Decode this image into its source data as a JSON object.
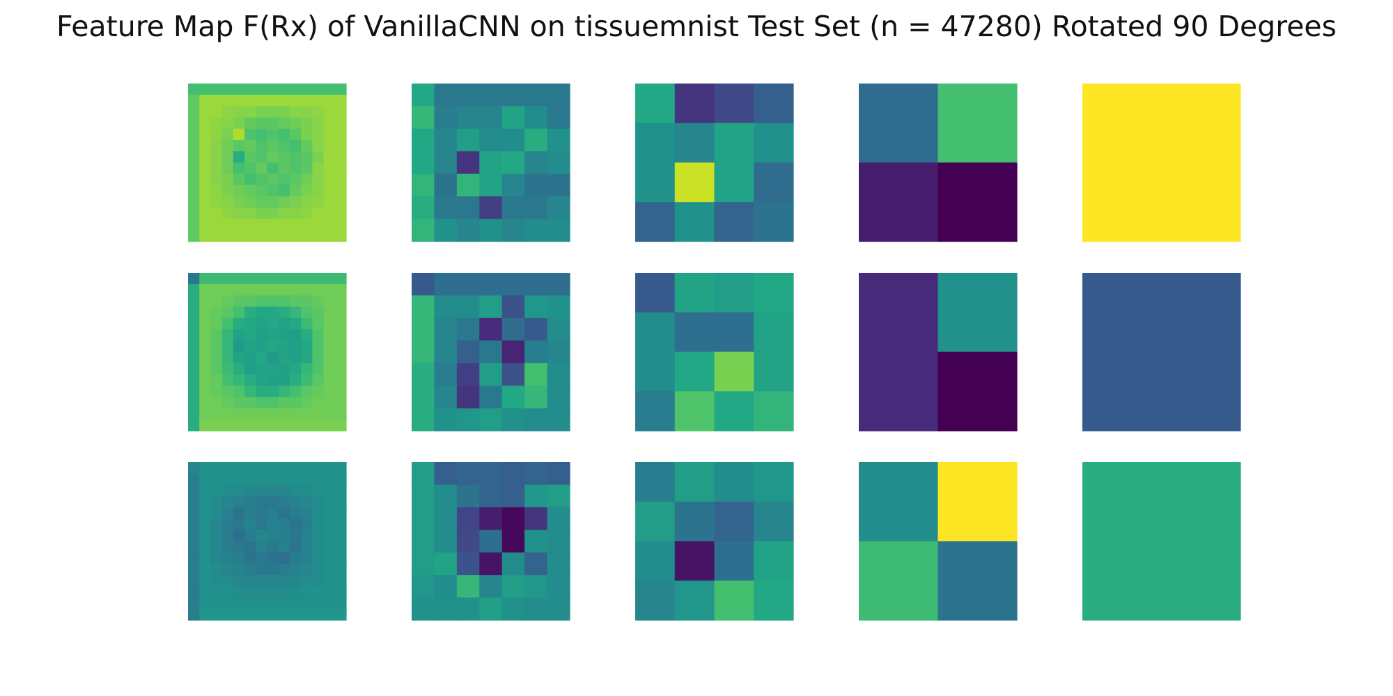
{
  "title": "Feature Map F(Rx) of VanillaCNN on tissuemnist Test Set (n = 47280) Rotated 90 Degrees",
  "chart_data": {
    "type": "heatmap",
    "title": "Feature Map F(Rx) of VanillaCNN on tissuemnist Test Set (n = 47280) Rotated 90 Degrees",
    "colormap": "viridis",
    "axes": "off",
    "value_range": [
      0,
      1
    ],
    "layout": {
      "rows": 3,
      "columns": 5
    },
    "panels": [
      {
        "row": 0,
        "col": 0,
        "size": 14,
        "values": [
          [
            0.7,
            0.7,
            0.7,
            0.7,
            0.7,
            0.7,
            0.7,
            0.7,
            0.7,
            0.7,
            0.7,
            0.7,
            0.7,
            0.7
          ],
          [
            0.75,
            0.85,
            0.85,
            0.85,
            0.85,
            0.85,
            0.85,
            0.85,
            0.85,
            0.85,
            0.85,
            0.85,
            0.85,
            0.85
          ],
          [
            0.75,
            0.85,
            0.85,
            0.83,
            0.82,
            0.82,
            0.8,
            0.8,
            0.8,
            0.82,
            0.82,
            0.83,
            0.85,
            0.85
          ],
          [
            0.75,
            0.85,
            0.83,
            0.82,
            0.8,
            0.76,
            0.74,
            0.74,
            0.76,
            0.78,
            0.8,
            0.82,
            0.85,
            0.85
          ],
          [
            0.75,
            0.85,
            0.83,
            0.8,
            0.88,
            0.72,
            0.7,
            0.72,
            0.7,
            0.74,
            0.8,
            0.82,
            0.85,
            0.85
          ],
          [
            0.75,
            0.85,
            0.82,
            0.78,
            0.74,
            0.76,
            0.72,
            0.74,
            0.72,
            0.7,
            0.76,
            0.82,
            0.85,
            0.85
          ],
          [
            0.75,
            0.85,
            0.82,
            0.78,
            0.62,
            0.74,
            0.72,
            0.76,
            0.74,
            0.72,
            0.74,
            0.8,
            0.85,
            0.85
          ],
          [
            0.75,
            0.85,
            0.82,
            0.78,
            0.7,
            0.72,
            0.76,
            0.7,
            0.74,
            0.72,
            0.74,
            0.82,
            0.85,
            0.85
          ],
          [
            0.75,
            0.85,
            0.82,
            0.8,
            0.74,
            0.7,
            0.72,
            0.74,
            0.72,
            0.74,
            0.78,
            0.82,
            0.85,
            0.85
          ],
          [
            0.75,
            0.85,
            0.83,
            0.8,
            0.78,
            0.76,
            0.74,
            0.72,
            0.7,
            0.76,
            0.8,
            0.82,
            0.85,
            0.85
          ],
          [
            0.75,
            0.85,
            0.83,
            0.82,
            0.8,
            0.78,
            0.76,
            0.76,
            0.78,
            0.8,
            0.82,
            0.83,
            0.85,
            0.85
          ],
          [
            0.75,
            0.85,
            0.85,
            0.83,
            0.82,
            0.82,
            0.8,
            0.8,
            0.82,
            0.82,
            0.83,
            0.85,
            0.85,
            0.85
          ],
          [
            0.75,
            0.85,
            0.85,
            0.85,
            0.85,
            0.85,
            0.85,
            0.85,
            0.85,
            0.85,
            0.85,
            0.85,
            0.85,
            0.85
          ],
          [
            0.75,
            0.85,
            0.85,
            0.85,
            0.85,
            0.85,
            0.85,
            0.85,
            0.85,
            0.85,
            0.85,
            0.85,
            0.85,
            0.85
          ]
        ]
      },
      {
        "row": 0,
        "col": 1,
        "size": 7,
        "values": [
          [
            0.6,
            0.4,
            0.4,
            0.4,
            0.4,
            0.4,
            0.4
          ],
          [
            0.66,
            0.42,
            0.45,
            0.45,
            0.58,
            0.48,
            0.4
          ],
          [
            0.6,
            0.45,
            0.55,
            0.48,
            0.48,
            0.62,
            0.5
          ],
          [
            0.6,
            0.45,
            0.15,
            0.58,
            0.6,
            0.45,
            0.48
          ],
          [
            0.65,
            0.38,
            0.65,
            0.58,
            0.45,
            0.38,
            0.38
          ],
          [
            0.62,
            0.4,
            0.4,
            0.18,
            0.4,
            0.4,
            0.45
          ],
          [
            0.65,
            0.5,
            0.45,
            0.5,
            0.45,
            0.48,
            0.48
          ]
        ]
      },
      {
        "row": 0,
        "col": 2,
        "size": 4,
        "values": [
          [
            0.6,
            0.15,
            0.22,
            0.3
          ],
          [
            0.5,
            0.45,
            0.58,
            0.5
          ],
          [
            0.5,
            0.92,
            0.58,
            0.35
          ],
          [
            0.32,
            0.5,
            0.32,
            0.38
          ]
        ]
      },
      {
        "row": 0,
        "col": 3,
        "size": 2,
        "values": [
          [
            0.35,
            0.7
          ],
          [
            0.08,
            0.0
          ]
        ]
      },
      {
        "row": 0,
        "col": 4,
        "size": 1,
        "values": [
          [
            1.0
          ]
        ]
      },
      {
        "row": 1,
        "col": 0,
        "size": 14,
        "values": [
          [
            0.4,
            0.68,
            0.68,
            0.68,
            0.68,
            0.68,
            0.68,
            0.68,
            0.68,
            0.68,
            0.68,
            0.68,
            0.68,
            0.68
          ],
          [
            0.62,
            0.78,
            0.78,
            0.78,
            0.78,
            0.78,
            0.78,
            0.78,
            0.78,
            0.78,
            0.78,
            0.78,
            0.78,
            0.78
          ],
          [
            0.62,
            0.78,
            0.78,
            0.76,
            0.74,
            0.74,
            0.72,
            0.72,
            0.72,
            0.74,
            0.74,
            0.76,
            0.78,
            0.78
          ],
          [
            0.62,
            0.78,
            0.76,
            0.74,
            0.7,
            0.62,
            0.6,
            0.6,
            0.62,
            0.66,
            0.72,
            0.74,
            0.78,
            0.78
          ],
          [
            0.62,
            0.78,
            0.76,
            0.7,
            0.62,
            0.6,
            0.58,
            0.6,
            0.58,
            0.6,
            0.68,
            0.74,
            0.78,
            0.78
          ],
          [
            0.62,
            0.78,
            0.74,
            0.66,
            0.58,
            0.6,
            0.56,
            0.58,
            0.56,
            0.55,
            0.62,
            0.72,
            0.78,
            0.78
          ],
          [
            0.62,
            0.78,
            0.74,
            0.66,
            0.54,
            0.58,
            0.56,
            0.6,
            0.58,
            0.56,
            0.6,
            0.72,
            0.78,
            0.78
          ],
          [
            0.62,
            0.78,
            0.74,
            0.66,
            0.58,
            0.56,
            0.6,
            0.54,
            0.58,
            0.56,
            0.6,
            0.72,
            0.78,
            0.78
          ],
          [
            0.62,
            0.78,
            0.74,
            0.68,
            0.62,
            0.56,
            0.58,
            0.58,
            0.56,
            0.6,
            0.66,
            0.72,
            0.78,
            0.78
          ],
          [
            0.62,
            0.78,
            0.76,
            0.7,
            0.66,
            0.62,
            0.58,
            0.56,
            0.56,
            0.62,
            0.68,
            0.74,
            0.78,
            0.78
          ],
          [
            0.62,
            0.78,
            0.76,
            0.74,
            0.72,
            0.66,
            0.62,
            0.62,
            0.66,
            0.7,
            0.74,
            0.76,
            0.78,
            0.78
          ],
          [
            0.62,
            0.78,
            0.78,
            0.76,
            0.74,
            0.74,
            0.72,
            0.72,
            0.74,
            0.74,
            0.76,
            0.78,
            0.78,
            0.78
          ],
          [
            0.62,
            0.78,
            0.78,
            0.78,
            0.78,
            0.78,
            0.78,
            0.78,
            0.78,
            0.78,
            0.78,
            0.78,
            0.78,
            0.78
          ],
          [
            0.62,
            0.8,
            0.8,
            0.8,
            0.8,
            0.8,
            0.8,
            0.8,
            0.8,
            0.8,
            0.8,
            0.8,
            0.8,
            0.8
          ]
        ]
      },
      {
        "row": 1,
        "col": 1,
        "size": 7,
        "values": [
          [
            0.28,
            0.36,
            0.36,
            0.36,
            0.36,
            0.36,
            0.36
          ],
          [
            0.66,
            0.48,
            0.48,
            0.55,
            0.25,
            0.52,
            0.5
          ],
          [
            0.66,
            0.45,
            0.4,
            0.12,
            0.35,
            0.28,
            0.48
          ],
          [
            0.66,
            0.45,
            0.3,
            0.4,
            0.1,
            0.42,
            0.45
          ],
          [
            0.62,
            0.42,
            0.18,
            0.55,
            0.25,
            0.7,
            0.48
          ],
          [
            0.62,
            0.45,
            0.15,
            0.4,
            0.6,
            0.66,
            0.48
          ],
          [
            0.62,
            0.5,
            0.52,
            0.55,
            0.5,
            0.48,
            0.48
          ]
        ]
      },
      {
        "row": 1,
        "col": 2,
        "size": 4,
        "values": [
          [
            0.28,
            0.58,
            0.55,
            0.6
          ],
          [
            0.48,
            0.36,
            0.36,
            0.58
          ],
          [
            0.48,
            0.6,
            0.8,
            0.58
          ],
          [
            0.42,
            0.72,
            0.6,
            0.65
          ]
        ]
      },
      {
        "row": 1,
        "col": 3,
        "size": 2,
        "values": [
          [
            0.12,
            0.5
          ],
          [
            0.12,
            0.0
          ]
        ]
      },
      {
        "row": 1,
        "col": 4,
        "size": 1,
        "values": [
          [
            0.28
          ]
        ]
      },
      {
        "row": 2,
        "col": 0,
        "size": 14,
        "values": [
          [
            0.45,
            0.5,
            0.5,
            0.5,
            0.5,
            0.5,
            0.5,
            0.5,
            0.5,
            0.5,
            0.5,
            0.5,
            0.5,
            0.5
          ],
          [
            0.42,
            0.5,
            0.5,
            0.5,
            0.5,
            0.5,
            0.5,
            0.5,
            0.5,
            0.5,
            0.5,
            0.5,
            0.5,
            0.5
          ],
          [
            0.42,
            0.5,
            0.5,
            0.48,
            0.48,
            0.46,
            0.46,
            0.46,
            0.46,
            0.48,
            0.48,
            0.5,
            0.5,
            0.5
          ],
          [
            0.42,
            0.5,
            0.48,
            0.46,
            0.44,
            0.42,
            0.4,
            0.4,
            0.42,
            0.44,
            0.46,
            0.48,
            0.5,
            0.5
          ],
          [
            0.42,
            0.5,
            0.48,
            0.44,
            0.38,
            0.42,
            0.4,
            0.42,
            0.38,
            0.42,
            0.44,
            0.48,
            0.5,
            0.5
          ],
          [
            0.42,
            0.5,
            0.46,
            0.42,
            0.4,
            0.44,
            0.4,
            0.44,
            0.42,
            0.38,
            0.42,
            0.48,
            0.5,
            0.5
          ],
          [
            0.42,
            0.5,
            0.46,
            0.42,
            0.36,
            0.42,
            0.46,
            0.44,
            0.42,
            0.4,
            0.44,
            0.48,
            0.5,
            0.5
          ],
          [
            0.42,
            0.5,
            0.46,
            0.42,
            0.4,
            0.38,
            0.44,
            0.4,
            0.44,
            0.38,
            0.44,
            0.48,
            0.5,
            0.5
          ],
          [
            0.42,
            0.5,
            0.46,
            0.44,
            0.42,
            0.38,
            0.4,
            0.38,
            0.36,
            0.42,
            0.44,
            0.48,
            0.5,
            0.5
          ],
          [
            0.42,
            0.5,
            0.48,
            0.46,
            0.44,
            0.42,
            0.4,
            0.4,
            0.42,
            0.44,
            0.46,
            0.48,
            0.5,
            0.5
          ],
          [
            0.42,
            0.5,
            0.48,
            0.48,
            0.46,
            0.46,
            0.46,
            0.46,
            0.46,
            0.46,
            0.48,
            0.48,
            0.5,
            0.5
          ],
          [
            0.42,
            0.5,
            0.5,
            0.5,
            0.48,
            0.48,
            0.48,
            0.48,
            0.48,
            0.48,
            0.5,
            0.5,
            0.5,
            0.5
          ],
          [
            0.42,
            0.5,
            0.5,
            0.5,
            0.5,
            0.5,
            0.5,
            0.5,
            0.5,
            0.5,
            0.5,
            0.5,
            0.5,
            0.5
          ],
          [
            0.42,
            0.52,
            0.52,
            0.52,
            0.52,
            0.52,
            0.52,
            0.52,
            0.52,
            0.52,
            0.52,
            0.52,
            0.52,
            0.52
          ]
        ]
      },
      {
        "row": 2,
        "col": 1,
        "size": 7,
        "values": [
          [
            0.55,
            0.3,
            0.32,
            0.32,
            0.3,
            0.32,
            0.3
          ],
          [
            0.55,
            0.48,
            0.38,
            0.32,
            0.3,
            0.52,
            0.55
          ],
          [
            0.55,
            0.48,
            0.2,
            0.08,
            0.02,
            0.15,
            0.48
          ],
          [
            0.55,
            0.48,
            0.22,
            0.36,
            0.02,
            0.5,
            0.48
          ],
          [
            0.55,
            0.58,
            0.25,
            0.05,
            0.48,
            0.32,
            0.48
          ],
          [
            0.52,
            0.48,
            0.66,
            0.45,
            0.55,
            0.52,
            0.48
          ],
          [
            0.5,
            0.5,
            0.5,
            0.56,
            0.5,
            0.48,
            0.48
          ]
        ]
      },
      {
        "row": 2,
        "col": 2,
        "size": 4,
        "values": [
          [
            0.42,
            0.55,
            0.48,
            0.52
          ],
          [
            0.55,
            0.38,
            0.32,
            0.45
          ],
          [
            0.48,
            0.05,
            0.36,
            0.58
          ],
          [
            0.45,
            0.52,
            0.7,
            0.6
          ]
        ]
      },
      {
        "row": 2,
        "col": 3,
        "size": 2,
        "values": [
          [
            0.48,
            1.0
          ],
          [
            0.68,
            0.38
          ]
        ]
      },
      {
        "row": 2,
        "col": 4,
        "size": 1,
        "values": [
          [
            0.62
          ]
        ]
      }
    ]
  }
}
